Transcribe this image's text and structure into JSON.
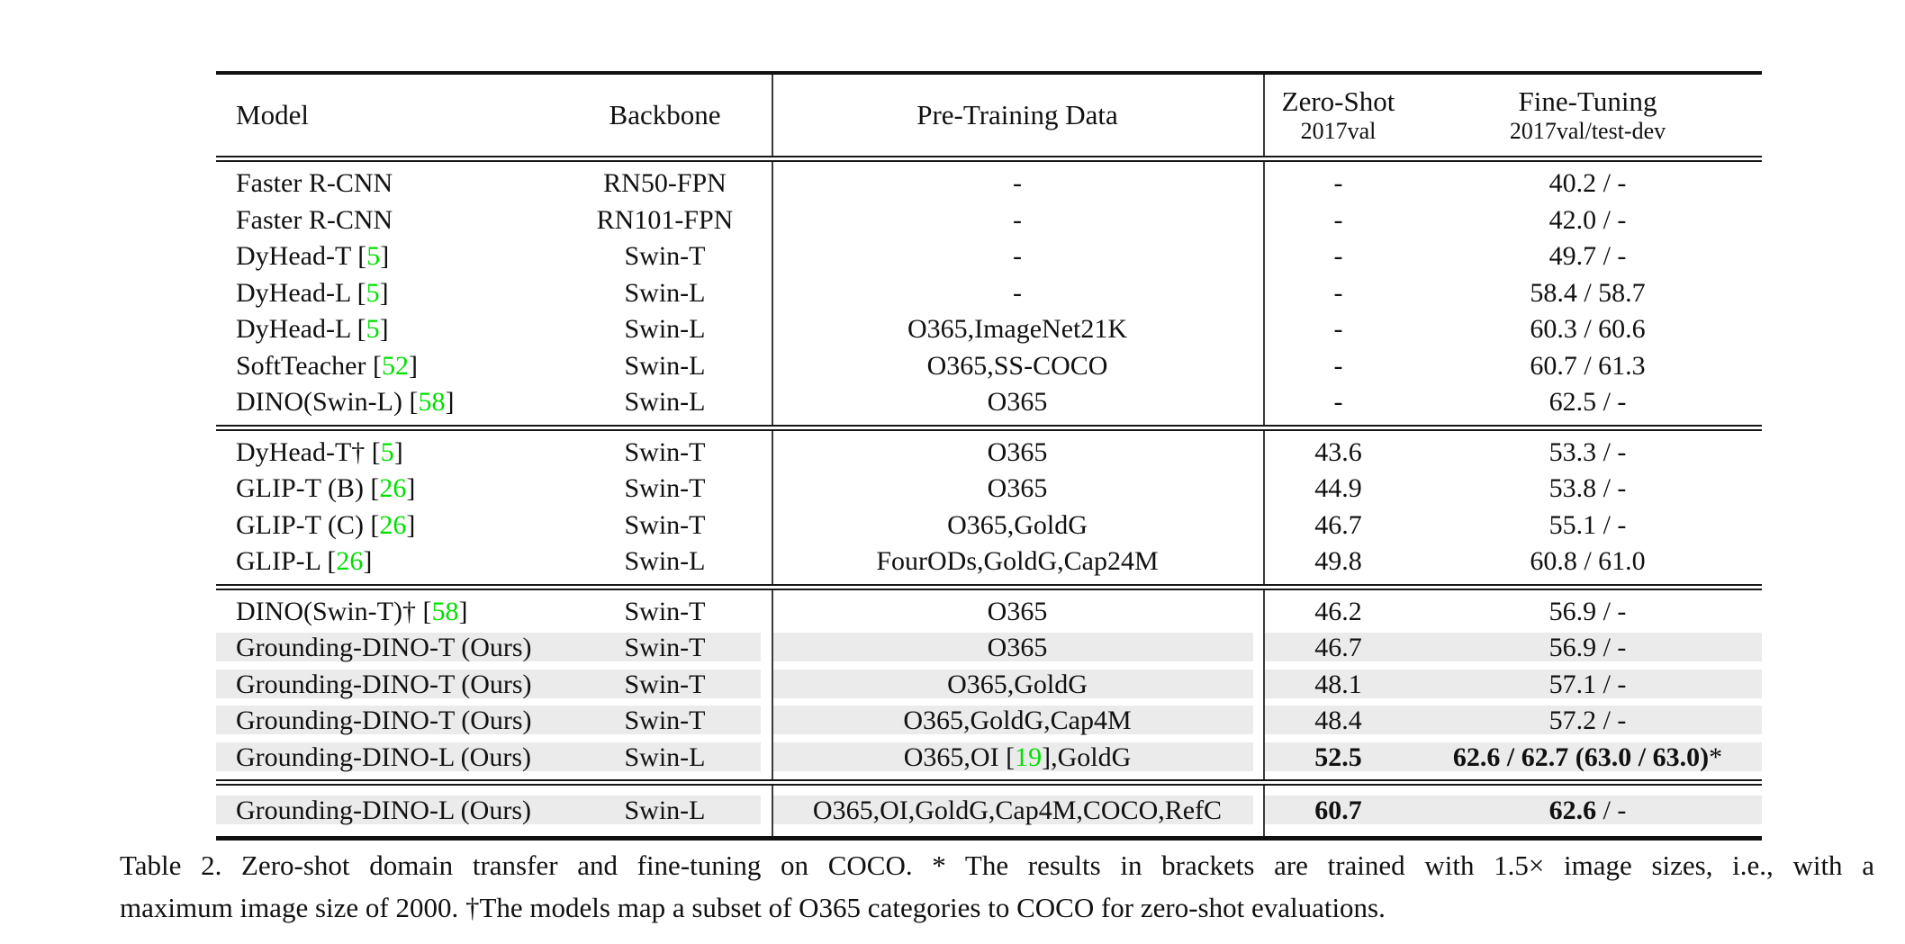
{
  "colors": {
    "citation_green": "#00e000",
    "row_highlight": "#ebebeb",
    "rule_black": "#111111",
    "divider_gray": "#3a3a3a",
    "page_background": "#ffffff"
  },
  "header": {
    "model": "Model",
    "backbone": "Backbone",
    "pretrain": "Pre-Training Data",
    "zeroshot_line1": "Zero-Shot",
    "zeroshot_line2": "2017val",
    "finetune_line1": "Fine-Tuning",
    "finetune_line2": "2017val/test-dev"
  },
  "sections": [
    {
      "rows": [
        {
          "hl": false,
          "model": [
            {
              "t": "Faster R-CNN"
            }
          ],
          "backbone": [
            {
              "t": "RN50-FPN"
            }
          ],
          "pretrain": [
            {
              "t": "-"
            }
          ],
          "zs": [
            {
              "t": "-"
            }
          ],
          "ft": [
            {
              "t": "40.2 / -"
            }
          ]
        },
        {
          "hl": false,
          "model": [
            {
              "t": "Faster R-CNN"
            }
          ],
          "backbone": [
            {
              "t": "RN101-FPN"
            }
          ],
          "pretrain": [
            {
              "t": "-"
            }
          ],
          "zs": [
            {
              "t": "-"
            }
          ],
          "ft": [
            {
              "t": "42.0 / -"
            }
          ]
        },
        {
          "hl": false,
          "model": [
            {
              "t": "DyHead-T ["
            },
            {
              "t": "5",
              "g": true
            },
            {
              "t": "]"
            }
          ],
          "backbone": [
            {
              "t": "Swin-T"
            }
          ],
          "pretrain": [
            {
              "t": "-"
            }
          ],
          "zs": [
            {
              "t": "-"
            }
          ],
          "ft": [
            {
              "t": "49.7 / -"
            }
          ]
        },
        {
          "hl": false,
          "model": [
            {
              "t": "DyHead-L ["
            },
            {
              "t": "5",
              "g": true
            },
            {
              "t": "]"
            }
          ],
          "backbone": [
            {
              "t": "Swin-L"
            }
          ],
          "pretrain": [
            {
              "t": "-"
            }
          ],
          "zs": [
            {
              "t": "-"
            }
          ],
          "ft": [
            {
              "t": "58.4 / 58.7"
            }
          ]
        },
        {
          "hl": false,
          "model": [
            {
              "t": "DyHead-L ["
            },
            {
              "t": "5",
              "g": true
            },
            {
              "t": "]"
            }
          ],
          "backbone": [
            {
              "t": "Swin-L"
            }
          ],
          "pretrain": [
            {
              "t": "O365,ImageNet21K"
            }
          ],
          "zs": [
            {
              "t": "-"
            }
          ],
          "ft": [
            {
              "t": "60.3 / 60.6"
            }
          ]
        },
        {
          "hl": false,
          "model": [
            {
              "t": "SoftTeacher ["
            },
            {
              "t": "52",
              "g": true
            },
            {
              "t": "]"
            }
          ],
          "backbone": [
            {
              "t": "Swin-L"
            }
          ],
          "pretrain": [
            {
              "t": "O365,SS-COCO"
            }
          ],
          "zs": [
            {
              "t": "-"
            }
          ],
          "ft": [
            {
              "t": "60.7 / 61.3"
            }
          ]
        },
        {
          "hl": false,
          "model": [
            {
              "t": "DINO(Swin-L) ["
            },
            {
              "t": "58",
              "g": true
            },
            {
              "t": "]"
            }
          ],
          "backbone": [
            {
              "t": "Swin-L"
            }
          ],
          "pretrain": [
            {
              "t": "O365"
            }
          ],
          "zs": [
            {
              "t": "-"
            }
          ],
          "ft": [
            {
              "t": "62.5 / -"
            }
          ]
        }
      ]
    },
    {
      "rows": [
        {
          "hl": false,
          "model": [
            {
              "t": "DyHead-T† ["
            },
            {
              "t": "5",
              "g": true
            },
            {
              "t": "]"
            }
          ],
          "backbone": [
            {
              "t": "Swin-T"
            }
          ],
          "pretrain": [
            {
              "t": "O365"
            }
          ],
          "zs": [
            {
              "t": "43.6"
            }
          ],
          "ft": [
            {
              "t": "53.3 / -"
            }
          ]
        },
        {
          "hl": false,
          "model": [
            {
              "t": "GLIP-T (B) ["
            },
            {
              "t": "26",
              "g": true
            },
            {
              "t": "]"
            }
          ],
          "backbone": [
            {
              "t": "Swin-T"
            }
          ],
          "pretrain": [
            {
              "t": "O365"
            }
          ],
          "zs": [
            {
              "t": "44.9"
            }
          ],
          "ft": [
            {
              "t": "53.8 / -"
            }
          ]
        },
        {
          "hl": false,
          "model": [
            {
              "t": "GLIP-T (C) ["
            },
            {
              "t": "26",
              "g": true
            },
            {
              "t": "]"
            }
          ],
          "backbone": [
            {
              "t": "Swin-T"
            }
          ],
          "pretrain": [
            {
              "t": "O365,GoldG"
            }
          ],
          "zs": [
            {
              "t": "46.7"
            }
          ],
          "ft": [
            {
              "t": "55.1 / -"
            }
          ]
        },
        {
          "hl": false,
          "model": [
            {
              "t": "GLIP-L ["
            },
            {
              "t": "26",
              "g": true
            },
            {
              "t": "]"
            }
          ],
          "backbone": [
            {
              "t": "Swin-L"
            }
          ],
          "pretrain": [
            {
              "t": "FourODs,GoldG,Cap24M"
            }
          ],
          "zs": [
            {
              "t": "49.8"
            }
          ],
          "ft": [
            {
              "t": "60.8 / 61.0"
            }
          ]
        }
      ]
    },
    {
      "rows": [
        {
          "hl": false,
          "model": [
            {
              "t": "DINO(Swin-T)† ["
            },
            {
              "t": "58",
              "g": true
            },
            {
              "t": "]"
            }
          ],
          "backbone": [
            {
              "t": "Swin-T"
            }
          ],
          "pretrain": [
            {
              "t": "O365"
            }
          ],
          "zs": [
            {
              "t": "46.2"
            }
          ],
          "ft": [
            {
              "t": "56.9 / -"
            }
          ]
        },
        {
          "hl": true,
          "model": [
            {
              "t": "Grounding-DINO-T (Ours)"
            }
          ],
          "backbone": [
            {
              "t": "Swin-T"
            }
          ],
          "pretrain": [
            {
              "t": "O365"
            }
          ],
          "zs": [
            {
              "t": "46.7"
            }
          ],
          "ft": [
            {
              "t": "56.9 / -"
            }
          ]
        },
        {
          "hl": true,
          "model": [
            {
              "t": "Grounding-DINO-T (Ours)"
            }
          ],
          "backbone": [
            {
              "t": "Swin-T"
            }
          ],
          "pretrain": [
            {
              "t": "O365,GoldG"
            }
          ],
          "zs": [
            {
              "t": "48.1"
            }
          ],
          "ft": [
            {
              "t": "57.1 / -"
            }
          ]
        },
        {
          "hl": true,
          "model": [
            {
              "t": "Grounding-DINO-T (Ours)"
            }
          ],
          "backbone": [
            {
              "t": "Swin-T"
            }
          ],
          "pretrain": [
            {
              "t": "O365,GoldG,Cap4M"
            }
          ],
          "zs": [
            {
              "t": "48.4"
            }
          ],
          "ft": [
            {
              "t": "57.2 / -"
            }
          ]
        },
        {
          "hl": true,
          "model": [
            {
              "t": "Grounding-DINO-L (Ours)"
            }
          ],
          "backbone": [
            {
              "t": "Swin-L"
            }
          ],
          "pretrain": [
            {
              "t": "O365,OI ["
            },
            {
              "t": "19",
              "g": true
            },
            {
              "t": "],GoldG"
            }
          ],
          "zs": [
            {
              "t": "52.5",
              "b": true
            }
          ],
          "ft": [
            {
              "t": "62.6 / 62.7 (63.0 / 63.0)",
              "b": true
            },
            {
              "t": "*"
            }
          ]
        }
      ]
    },
    {
      "rows": [
        {
          "hl": true,
          "model": [
            {
              "t": "Grounding-DINO-L (Ours)"
            }
          ],
          "backbone": [
            {
              "t": "Swin-L"
            }
          ],
          "pretrain": [
            {
              "t": "O365,OI,GoldG,Cap4M,COCO,RefC"
            }
          ],
          "zs": [
            {
              "t": "60.7",
              "b": true
            }
          ],
          "ft": [
            {
              "t": "62.6",
              "b": true
            },
            {
              "t": " / -"
            }
          ]
        }
      ]
    }
  ],
  "caption": {
    "line1": "Table 2.  Zero-shot domain transfer and fine-tuning on COCO. * The results in brackets are trained with 1.5× image sizes, i.e., with a",
    "line2": "maximum image size of 2000. †The models map a subset of O365 categories to COCO for zero-shot evaluations."
  }
}
